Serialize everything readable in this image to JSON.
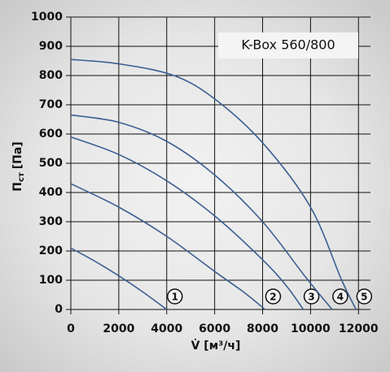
{
  "chart_data": {
    "type": "line",
    "title": "K-Box 560/800",
    "y_label": {
      "symbol": "П",
      "sub": "ст",
      "unit": "[Па]"
    },
    "x_label": "V̇ [м³/ч]",
    "xlim": [
      0,
      12500
    ],
    "ylim": [
      0,
      1000
    ],
    "xticks": [
      0,
      2000,
      4000,
      6000,
      8000,
      10000,
      12000
    ],
    "yticks": [
      0,
      100,
      200,
      300,
      400,
      500,
      600,
      700,
      800,
      900,
      1000
    ],
    "grid": true,
    "series": [
      {
        "name": "1",
        "color": "#3b5f92",
        "x": [
          0,
          1000,
          2000,
          3000,
          4000
        ],
        "values": [
          210,
          165,
          115,
          60,
          0
        ]
      },
      {
        "name": "2",
        "color": "#3b5f92",
        "x": [
          0,
          2000,
          4000,
          6000,
          7200,
          8100
        ],
        "values": [
          430,
          350,
          250,
          130,
          60,
          0
        ]
      },
      {
        "name": "3",
        "color": "#3b5f92",
        "x": [
          0,
          2000,
          4000,
          6000,
          8000,
          9000,
          9700
        ],
        "values": [
          590,
          530,
          440,
          320,
          170,
          80,
          0
        ]
      },
      {
        "name": "4",
        "color": "#3b5f92",
        "x": [
          0,
          2000,
          4000,
          6000,
          8000,
          9800,
          10900
        ],
        "values": [
          665,
          640,
          575,
          460,
          300,
          110,
          0
        ]
      },
      {
        "name": "5",
        "color": "#3b5f92",
        "x": [
          0,
          2000,
          4300,
          6000,
          8000,
          10000,
          11300,
          11900
        ],
        "values": [
          855,
          840,
          800,
          720,
          570,
          350,
          100,
          0
        ]
      }
    ]
  }
}
